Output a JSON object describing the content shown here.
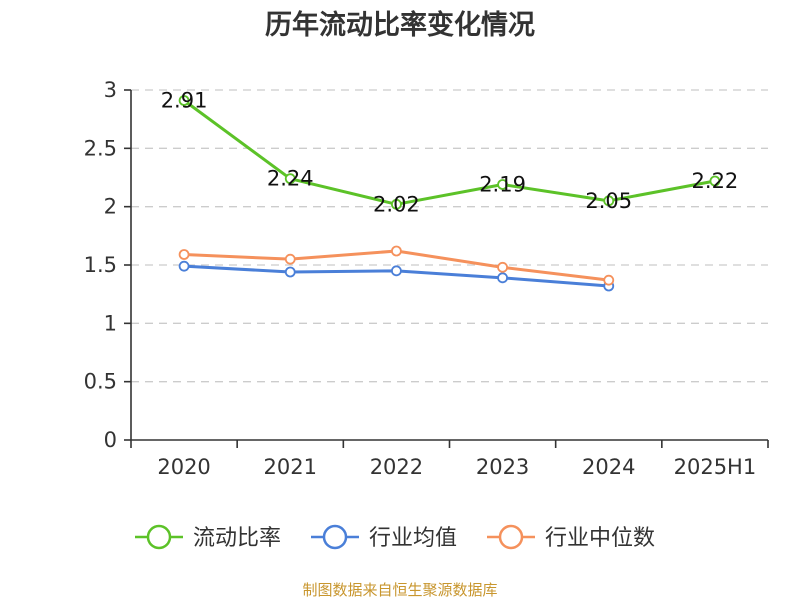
{
  "source_note": "制图数据来自恒生聚源数据库",
  "chart_data": {
    "type": "line",
    "title": "历年流动比率变化情况",
    "xlabel": "",
    "ylabel": "",
    "categories": [
      "2020",
      "2021",
      "2022",
      "2023",
      "2024",
      "2025H1"
    ],
    "ylim": [
      0,
      3
    ],
    "yticks": [
      "0",
      "0.5",
      "1",
      "1.5",
      "2",
      "2.5",
      "3"
    ],
    "grid": true,
    "legend_position": "bottom",
    "series": [
      {
        "name": "流动比率",
        "color": "#5cc228",
        "show_labels": true,
        "values": [
          2.91,
          2.24,
          2.02,
          2.19,
          2.05,
          2.22
        ],
        "labels": [
          "2.91",
          "2.24",
          "2.02",
          "2.19",
          "2.05",
          "2.22"
        ]
      },
      {
        "name": "行业均值",
        "color": "#4a7fd8",
        "show_labels": false,
        "values": [
          1.49,
          1.44,
          1.45,
          1.39,
          1.32,
          null
        ]
      },
      {
        "name": "行业中位数",
        "color": "#f5915c",
        "show_labels": false,
        "values": [
          1.59,
          1.55,
          1.62,
          1.48,
          1.37,
          null
        ]
      }
    ]
  }
}
